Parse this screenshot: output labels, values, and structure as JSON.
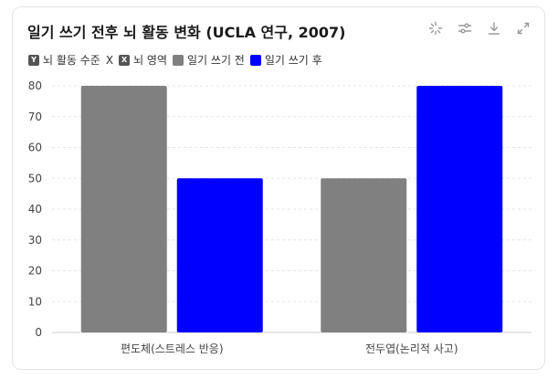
{
  "toolbar": {
    "icons": [
      "loading-spinner-icon",
      "settings-sliders-icon",
      "download-icon",
      "expand-icon"
    ]
  },
  "legend": {
    "y_axis_badge": "Y",
    "y_axis_label": "뇌 활동 수준",
    "x_axis_badge": "X",
    "x_axis_label": "뇌 영역"
  },
  "chart_data": {
    "type": "bar",
    "title": "일기 쓰기 전후 뇌 활동 변화 (UCLA 연구, 2007)",
    "xlabel": "뇌 영역",
    "ylabel": "뇌 활동 수준",
    "categories": [
      "편도체(스트레스 반응)",
      "전두엽(논리적 사고)"
    ],
    "series": [
      {
        "name": "일기 쓰기 전",
        "color": "#808080",
        "values": [
          80,
          50
        ]
      },
      {
        "name": "일기 쓰기 후",
        "color": "#0000ff",
        "values": [
          50,
          80
        ]
      }
    ],
    "ylim": [
      0,
      80
    ],
    "yticks": [
      0,
      10,
      20,
      30,
      40,
      50,
      60,
      70,
      80
    ],
    "grid": true,
    "legend_position": "top-left"
  }
}
